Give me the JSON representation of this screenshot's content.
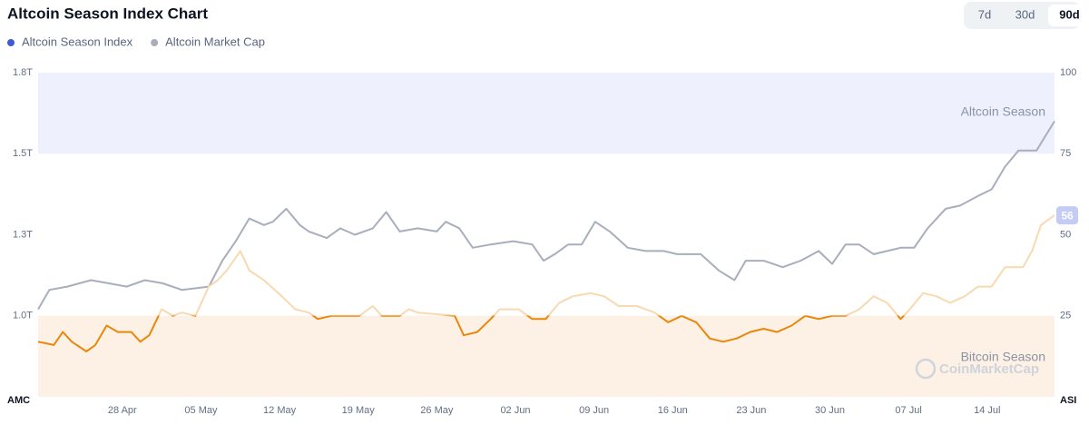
{
  "chart_data": {
    "type": "line",
    "title": "Altcoin Season Index Chart",
    "range_buttons": [
      "7d",
      "30d",
      "90d"
    ],
    "active_range": "90d",
    "xlim": [
      -7.5,
      83
    ],
    "xticks": [
      {
        "value": 0,
        "label": "28 Apr"
      },
      {
        "value": 7,
        "label": "05 May"
      },
      {
        "value": 14,
        "label": "12 May"
      },
      {
        "value": 21,
        "label": "19 May"
      },
      {
        "value": 28,
        "label": "26 May"
      },
      {
        "value": 35,
        "label": "02 Jun"
      },
      {
        "value": 42,
        "label": "09 Jun"
      },
      {
        "value": 49,
        "label": "16 Jun"
      },
      {
        "value": 56,
        "label": "23 Jun"
      },
      {
        "value": 63,
        "label": "30 Jun"
      },
      {
        "value": 70,
        "label": "07 Jul"
      },
      {
        "value": 77,
        "label": "14 Jul"
      }
    ],
    "y_axis_label": "AMC",
    "y2_axis_label": "ASI",
    "ylim": [
      0.75,
      1.75
    ],
    "yticks": [
      {
        "value": 1.75,
        "label": "1.8T"
      },
      {
        "value": 1.5,
        "label": "1.5T"
      },
      {
        "value": 1.25,
        "label": "1.3T"
      },
      {
        "value": 1.0,
        "label": "1.0T"
      }
    ],
    "y2lim": [
      0,
      100
    ],
    "y2ticks": [
      100,
      75,
      50,
      25
    ],
    "bands": [
      {
        "label": "Altcoin Season",
        "from": 75,
        "to": 100,
        "color": "#eef0fd"
      },
      {
        "label": "Bitcoin Season",
        "from": 0,
        "to": 25,
        "color": "#fdf1e6"
      }
    ],
    "watermark": "CoinMarketCap",
    "series": [
      {
        "name": "Altcoin Season Index",
        "color": "#3d5bd9",
        "axis": "y2",
        "line_colors": [
          "#e8870c",
          "#f8d9b0"
        ],
        "x": [
          -7.5,
          -6.1,
          -5.3,
          -4.5,
          -3.2,
          -2.4,
          -1.4,
          -0.4,
          0.8,
          1.6,
          2.4,
          3.5,
          4.5,
          5.3,
          6.5,
          7.7,
          8.5,
          9.3,
          10.5,
          11.3,
          12.6,
          14.2,
          15.4,
          16.6,
          17.4,
          18.6,
          21.1,
          22.3,
          23.1,
          24.7,
          25.5,
          26.3,
          29.6,
          30.4,
          31.6,
          32.8,
          33.6,
          35.3,
          36.5,
          37.7,
          38.9,
          40.1,
          41.7,
          42.9,
          44.2,
          45.8,
          47.4,
          48.6,
          49.8,
          51.1,
          52.3,
          53.5,
          54.7,
          55.9,
          57.1,
          58.3,
          59.6,
          60.8,
          62.0,
          63.2,
          64.4,
          65.6,
          66.9,
          68.1,
          69.3,
          70.1,
          71.3,
          72.5,
          73.7,
          75.0,
          76.2,
          77.4,
          78.6,
          80.2,
          81.0,
          81.8,
          83.0
        ],
        "values": [
          17,
          16,
          20,
          17,
          14,
          16,
          22,
          20,
          20,
          17,
          19,
          27,
          25,
          26,
          25,
          34,
          36,
          39,
          45,
          39,
          36,
          31,
          27,
          26,
          24,
          25,
          25,
          28,
          25,
          25,
          27,
          26,
          25,
          19,
          20,
          24,
          27,
          27,
          24,
          24,
          29,
          31,
          32,
          31,
          28,
          28,
          26,
          23,
          25,
          23,
          18,
          17,
          18,
          20,
          21,
          20,
          22,
          25,
          24,
          25,
          25,
          27,
          31,
          29,
          24,
          27,
          32,
          31,
          29,
          31,
          34,
          34,
          40,
          40,
          45,
          53,
          56
        ]
      },
      {
        "name": "Altcoin Market Cap",
        "color": "#a9aebd",
        "x": [
          -7.5,
          -6.5,
          -4.9,
          -2.8,
          -1.2,
          0.4,
          2.0,
          3.6,
          5.3,
          7.7,
          8.9,
          10.1,
          11.3,
          12.6,
          13.4,
          14.6,
          15.8,
          16.6,
          18.2,
          19.4,
          20.7,
          22.3,
          23.5,
          24.7,
          26.3,
          28.0,
          28.8,
          30.0,
          31.2,
          32.8,
          34.8,
          36.5,
          37.5,
          38.5,
          39.7,
          40.9,
          42.1,
          43.4,
          45.0,
          46.6,
          48.2,
          49.4,
          51.5,
          53.1,
          54.5,
          55.5,
          57.1,
          58.8,
          60.4,
          62.0,
          63.2,
          64.4,
          65.6,
          66.9,
          68.1,
          69.3,
          70.5,
          71.7,
          73.3,
          74.6,
          76.2,
          77.4,
          78.6,
          79.8,
          81.4,
          83.0
        ],
        "values": [
          1.02,
          1.08,
          1.09,
          1.11,
          1.1,
          1.09,
          1.11,
          1.1,
          1.08,
          1.09,
          1.17,
          1.23,
          1.3,
          1.28,
          1.29,
          1.33,
          1.28,
          1.26,
          1.24,
          1.27,
          1.25,
          1.27,
          1.32,
          1.26,
          1.27,
          1.26,
          1.29,
          1.27,
          1.21,
          1.22,
          1.23,
          1.22,
          1.17,
          1.19,
          1.22,
          1.22,
          1.29,
          1.26,
          1.21,
          1.2,
          1.2,
          1.19,
          1.19,
          1.14,
          1.11,
          1.17,
          1.17,
          1.15,
          1.17,
          1.2,
          1.16,
          1.22,
          1.22,
          1.19,
          1.2,
          1.21,
          1.21,
          1.27,
          1.33,
          1.34,
          1.37,
          1.39,
          1.46,
          1.51,
          1.51,
          1.6
        ]
      }
    ]
  }
}
